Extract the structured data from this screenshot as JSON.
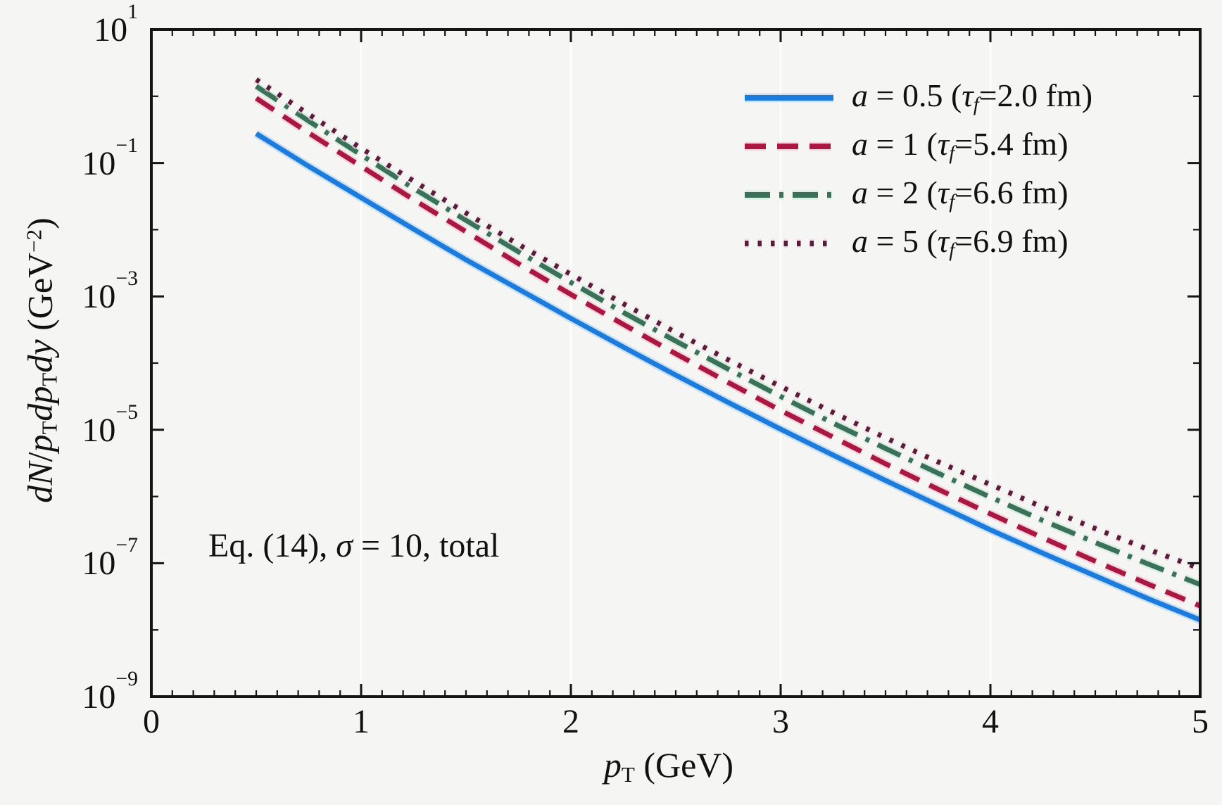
{
  "figure": {
    "background": "#f5f5f4",
    "axis_color": "#151515",
    "grid_color": "#ffffff"
  },
  "axes": {
    "x": {
      "label": {
        "p": "p",
        "sub": "T",
        "unit": " (GeV)"
      },
      "min": 0,
      "max": 5,
      "tick_labels": [
        "0",
        "1",
        "2",
        "3",
        "4",
        "5"
      ],
      "minor_tick_step": 0.1
    },
    "y": {
      "label": {
        "i1": "dN",
        "s1": "/",
        "i2": "p",
        "sub1": "T",
        "i3": "dp",
        "sub2": "T",
        "i4": "dy",
        "r1": " (GeV",
        "sup1": "−2",
        "r2": ")"
      },
      "scale": "log",
      "log_min": -9,
      "log_max": 1,
      "ticks": [
        {
          "base": "10",
          "exp": "1"
        },
        {
          "base": "10",
          "exp": "−1"
        },
        {
          "base": "10",
          "exp": "−3"
        },
        {
          "base": "10",
          "exp": "−5"
        },
        {
          "base": "10",
          "exp": "−7"
        },
        {
          "base": "10",
          "exp": "−9"
        }
      ]
    }
  },
  "annotation": {
    "pre": "Eq. (14), ",
    "sigma": "σ",
    "post": " = 10, total"
  },
  "legend": [
    {
      "var": "a",
      "mid": " = 0.5 (",
      "tau": "τ",
      "sub": "f",
      "post": "=2.0 fm)"
    },
    {
      "var": "a",
      "mid": " = 1 (",
      "tau": "τ",
      "sub": "f",
      "post": "=5.4 fm)"
    },
    {
      "var": "a",
      "mid": " = 2 (",
      "tau": "τ",
      "sub": "f",
      "post": "=6.6 fm)"
    },
    {
      "var": "a",
      "mid": " = 5 (",
      "tau": "τ",
      "sub": "f",
      "post": "=6.9 fm)"
    }
  ],
  "chart_data": {
    "type": "line",
    "title": "",
    "xlabel": "pT (GeV)",
    "ylabel": "dN/pT dpT dy (GeV^-2)",
    "annotation": "Eq. (14), sigma = 10, total",
    "x_range": [
      0,
      5
    ],
    "y_log_range": [
      -9,
      1
    ],
    "grid": "vertical white gridlines at integer x",
    "grid_x": [
      1,
      2,
      3,
      4
    ],
    "legend_position": "upper right",
    "x": [
      0.5,
      0.75,
      1.0,
      1.25,
      1.5,
      1.75,
      2.0,
      2.25,
      2.5,
      2.75,
      3.0,
      3.25,
      3.5,
      3.75,
      4.0,
      4.25,
      4.5,
      4.75,
      5.0
    ],
    "series": [
      {
        "name": "a = 0.5 (tau_f = 2.0 fm)",
        "style": "solid",
        "dash": "",
        "width": 7,
        "color": "#1b7cde",
        "halo": "#a6cdf1",
        "log10_y": [
          -0.56,
          -1.05,
          -1.52,
          -1.99,
          -2.45,
          -2.89,
          -3.33,
          -3.76,
          -4.18,
          -4.59,
          -4.99,
          -5.38,
          -5.76,
          -6.13,
          -6.5,
          -6.85,
          -7.19,
          -7.53,
          -7.85
        ]
      },
      {
        "name": "a = 1 (tau_f = 5.4 fm)",
        "style": "dashed",
        "dash": "30 16",
        "width": 7,
        "color": "#aa1740",
        "halo": "#f2bed0",
        "log10_y": [
          -0.03,
          -0.55,
          -1.05,
          -1.55,
          -2.03,
          -2.51,
          -2.97,
          -3.42,
          -3.86,
          -4.29,
          -4.71,
          -5.11,
          -5.51,
          -5.89,
          -6.26,
          -6.62,
          -6.97,
          -7.31,
          -7.64
        ]
      },
      {
        "name": "a = 2 (tau_f = 6.6 fm)",
        "style": "dashdot",
        "dash": "36 13 6 13",
        "width": 7,
        "color": "#3a7159",
        "halo": "#c4e6d6",
        "log10_y": [
          0.15,
          -0.37,
          -0.88,
          -1.38,
          -1.86,
          -2.33,
          -2.79,
          -3.24,
          -3.67,
          -4.09,
          -4.5,
          -4.9,
          -5.28,
          -5.65,
          -6.01,
          -6.36,
          -6.69,
          -7.01,
          -7.32
        ]
      },
      {
        "name": "a = 5 (tau_f = 6.9 fm)",
        "style": "dotted",
        "dash": "5.5 13",
        "width": 7,
        "color": "#5c1b3a",
        "halo": "#ecc6d7",
        "log10_y": [
          0.25,
          -0.27,
          -0.78,
          -1.27,
          -1.75,
          -2.22,
          -2.67,
          -3.11,
          -3.54,
          -3.95,
          -4.35,
          -4.74,
          -5.12,
          -5.48,
          -5.82,
          -6.16,
          -6.48,
          -6.79,
          -7.08
        ]
      }
    ]
  }
}
